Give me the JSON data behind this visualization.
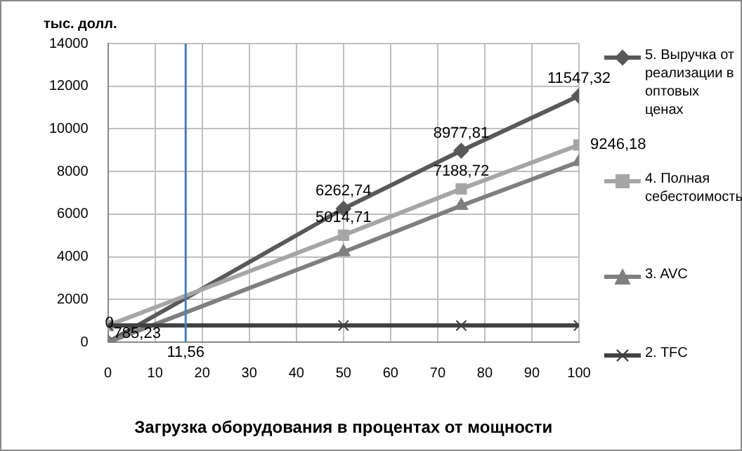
{
  "chart_data": {
    "type": "line",
    "xlabel": "Загрузка оборудования в процентах от мощности",
    "ylabel": "тыс. долл.",
    "x": [
      0,
      50,
      75,
      100
    ],
    "xlim": [
      0,
      100
    ],
    "xticks": [
      0,
      10,
      20,
      30,
      40,
      50,
      60,
      70,
      80,
      90,
      100
    ],
    "ylim": [
      0,
      14000
    ],
    "yticks": [
      0,
      2000,
      4000,
      6000,
      8000,
      10000,
      12000,
      14000
    ],
    "grid": true,
    "legend": "right",
    "series": [
      {
        "name": "5. Выручка от реализации в оптовых ценах",
        "color": "#595959",
        "marker": "diamond",
        "values": [
          0,
          6262.74,
          8977.81,
          11547.32
        ],
        "value_labels": [
          "0",
          "6262,74",
          "8977,81",
          "11547,32"
        ]
      },
      {
        "name": "4. Полная себестоимость",
        "color": "#a6a6a6",
        "marker": "square",
        "values": [
          785.23,
          5014.71,
          7188.72,
          9246.18
        ],
        "value_labels": [
          "785,23",
          "5014,71",
          "7188,72",
          "9246,18"
        ]
      },
      {
        "name": "3. AVC",
        "color": "#7f7f7f",
        "marker": "triangle",
        "values": [
          0,
          4230,
          6400,
          8460
        ]
      },
      {
        "name": "2. TFC",
        "color": "#404040",
        "marker": "cross",
        "values": [
          785,
          785,
          785,
          785
        ]
      }
    ],
    "ref_lines": [
      {
        "axis": "x",
        "value": 16.5,
        "color": "#4a7ebb"
      }
    ],
    "annotations": [
      "11,56"
    ]
  }
}
